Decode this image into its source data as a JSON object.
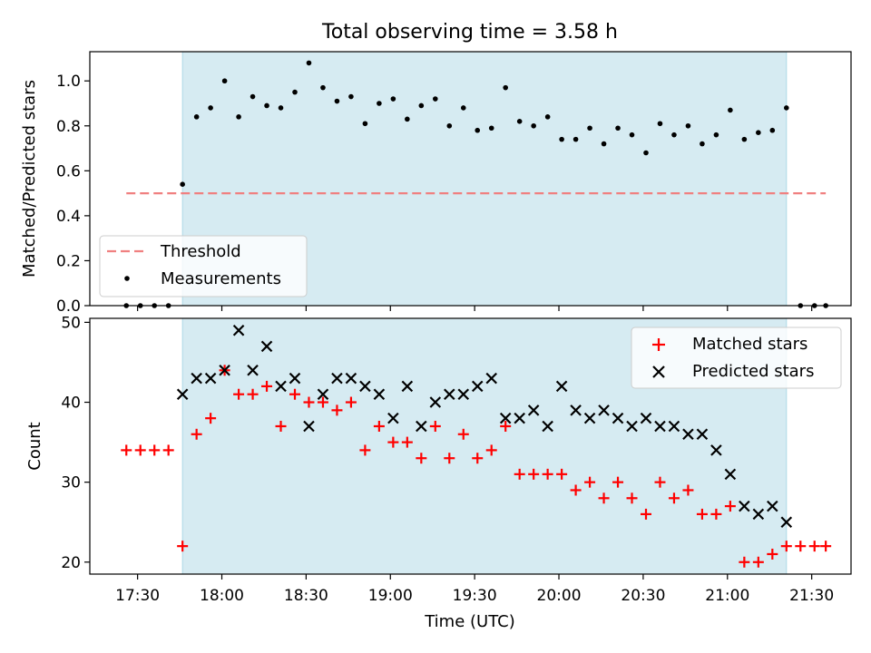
{
  "title": "Total observing time = 3.58 h",
  "chart_data": [
    {
      "type": "scatter",
      "panel": "top",
      "ylabel": "Matched/Predicted stars",
      "ylim": [
        0.0,
        1.13
      ],
      "xlim": [
        "17:13",
        "21:44"
      ],
      "yticks": [
        0.0,
        0.2,
        0.4,
        0.6,
        0.8,
        1.0
      ],
      "ytick_labels": [
        "0.0",
        "0.2",
        "0.4",
        "0.6",
        "0.8",
        "1.0"
      ],
      "observing_window": [
        "17:46",
        "21:21"
      ],
      "threshold": {
        "name": "Threshold",
        "value": 0.5,
        "x_range": [
          "17:26",
          "21:35"
        ],
        "color": "#f08080"
      },
      "series": [
        {
          "name": "Measurements",
          "color": "#000000",
          "x": [
            "17:26",
            "17:31",
            "17:36",
            "17:41",
            "17:46",
            "17:51",
            "17:56",
            "18:01",
            "18:06",
            "18:11",
            "18:16",
            "18:21",
            "18:26",
            "18:31",
            "18:36",
            "18:41",
            "18:46",
            "18:51",
            "18:56",
            "19:01",
            "19:06",
            "19:11",
            "19:16",
            "19:21",
            "19:26",
            "19:31",
            "19:36",
            "19:41",
            "19:46",
            "19:51",
            "19:56",
            "20:01",
            "20:06",
            "20:11",
            "20:16",
            "20:21",
            "20:26",
            "20:31",
            "20:36",
            "20:41",
            "20:46",
            "20:51",
            "20:56",
            "21:01",
            "21:06",
            "21:11",
            "21:16",
            "21:21",
            "21:26",
            "21:31",
            "21:35"
          ],
          "y": [
            0.0,
            0.0,
            0.0,
            0.0,
            0.54,
            0.84,
            0.88,
            1.0,
            0.84,
            0.93,
            0.89,
            0.88,
            0.95,
            1.08,
            0.97,
            0.91,
            0.93,
            0.81,
            0.9,
            0.92,
            0.83,
            0.89,
            0.92,
            0.8,
            0.88,
            0.78,
            0.79,
            0.97,
            0.82,
            0.8,
            0.84,
            0.74,
            0.74,
            0.79,
            0.72,
            0.79,
            0.76,
            0.68,
            0.81,
            0.76,
            0.8,
            0.72,
            0.76,
            0.87,
            0.74,
            0.77,
            0.78,
            0.88,
            0.0,
            0.0,
            0.0
          ]
        }
      ],
      "legend": {
        "placement": "lower-left",
        "entries": [
          "Threshold",
          "Measurements"
        ]
      }
    },
    {
      "type": "scatter",
      "panel": "bottom",
      "xlabel": "Time (UTC)",
      "ylabel": "Count",
      "ylim": [
        18.5,
        50.5
      ],
      "xlim": [
        "17:13",
        "21:44"
      ],
      "yticks": [
        20,
        30,
        40,
        50
      ],
      "ytick_labels": [
        "20",
        "30",
        "40",
        "50"
      ],
      "xticks": [
        "17:30",
        "18:00",
        "18:30",
        "19:00",
        "19:30",
        "20:00",
        "20:30",
        "21:00",
        "21:30"
      ],
      "observing_window": [
        "17:46",
        "21:21"
      ],
      "series": [
        {
          "name": "Matched stars",
          "color": "#ff0000",
          "marker": "plus",
          "x": [
            "17:26",
            "17:31",
            "17:36",
            "17:41",
            "17:46",
            "17:51",
            "17:56",
            "18:01",
            "18:06",
            "18:11",
            "18:16",
            "18:21",
            "18:26",
            "18:31",
            "18:36",
            "18:41",
            "18:46",
            "18:51",
            "18:56",
            "19:01",
            "19:06",
            "19:11",
            "19:16",
            "19:21",
            "19:26",
            "19:31",
            "19:36",
            "19:41",
            "19:46",
            "19:51",
            "19:56",
            "20:01",
            "20:06",
            "20:11",
            "20:16",
            "20:21",
            "20:26",
            "20:31",
            "20:36",
            "20:41",
            "20:46",
            "20:51",
            "20:56",
            "21:01",
            "21:06",
            "21:11",
            "21:16",
            "21:21",
            "21:26",
            "21:31",
            "21:35"
          ],
          "y": [
            34,
            34,
            34,
            34,
            22,
            36,
            38,
            44,
            41,
            41,
            42,
            37,
            41,
            40,
            40,
            39,
            40,
            34,
            37,
            35,
            35,
            33,
            37,
            33,
            36,
            33,
            34,
            37,
            31,
            31,
            31,
            31,
            29,
            30,
            28,
            30,
            28,
            26,
            30,
            28,
            29,
            26,
            26,
            27,
            20,
            20,
            21,
            22,
            22,
            22,
            22
          ]
        },
        {
          "name": "Predicted stars",
          "color": "#000000",
          "marker": "x",
          "x": [
            "17:46",
            "17:51",
            "17:56",
            "18:01",
            "18:06",
            "18:11",
            "18:16",
            "18:21",
            "18:26",
            "18:31",
            "18:36",
            "18:41",
            "18:46",
            "18:51",
            "18:56",
            "19:01",
            "19:06",
            "19:11",
            "19:16",
            "19:21",
            "19:26",
            "19:31",
            "19:36",
            "19:41",
            "19:46",
            "19:51",
            "19:56",
            "20:01",
            "20:06",
            "20:11",
            "20:16",
            "20:21",
            "20:26",
            "20:31",
            "20:36",
            "20:41",
            "20:46",
            "20:51",
            "20:56",
            "21:01",
            "21:06",
            "21:11",
            "21:16",
            "21:21"
          ],
          "y": [
            41,
            43,
            43,
            44,
            49,
            44,
            47,
            42,
            43,
            37,
            41,
            43,
            43,
            42,
            41,
            38,
            42,
            37,
            40,
            41,
            41,
            42,
            43,
            38,
            38,
            39,
            37,
            42,
            39,
            38,
            39,
            38,
            37,
            38,
            37,
            37,
            36,
            36,
            34,
            31,
            27,
            26,
            27,
            25
          ]
        }
      ],
      "legend": {
        "placement": "upper-right",
        "entries": [
          "Matched stars",
          "Predicted stars"
        ]
      }
    }
  ]
}
